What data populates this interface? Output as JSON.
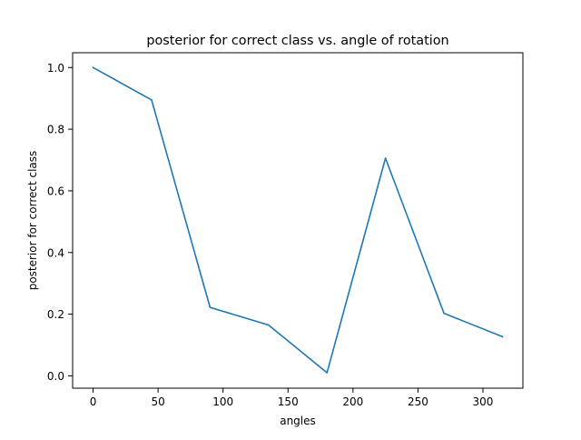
{
  "chart_data": {
    "type": "line",
    "title": "posterior for correct class vs. angle of rotation",
    "xlabel": "angles",
    "ylabel": "posterior for correct class",
    "xlim": [
      -15.75,
      330.75
    ],
    "ylim": [
      -0.04,
      1.048
    ],
    "x_ticks": [
      0,
      50,
      100,
      150,
      200,
      250,
      300
    ],
    "y_ticks": [
      0.0,
      0.2,
      0.4,
      0.6,
      0.8,
      1.0
    ],
    "x_tick_labels": [
      "0",
      "50",
      "100",
      "150",
      "200",
      "250",
      "300"
    ],
    "y_tick_labels": [
      "0.0",
      "0.2",
      "0.4",
      "0.6",
      "0.8",
      "1.0"
    ],
    "grid": false,
    "series": [
      {
        "color": "#1f77b4",
        "x": [
          0,
          45,
          90,
          135,
          180,
          225,
          270,
          315
        ],
        "y": [
          1.0,
          0.895,
          0.222,
          0.165,
          0.01,
          0.706,
          0.203,
          0.127
        ]
      }
    ]
  }
}
